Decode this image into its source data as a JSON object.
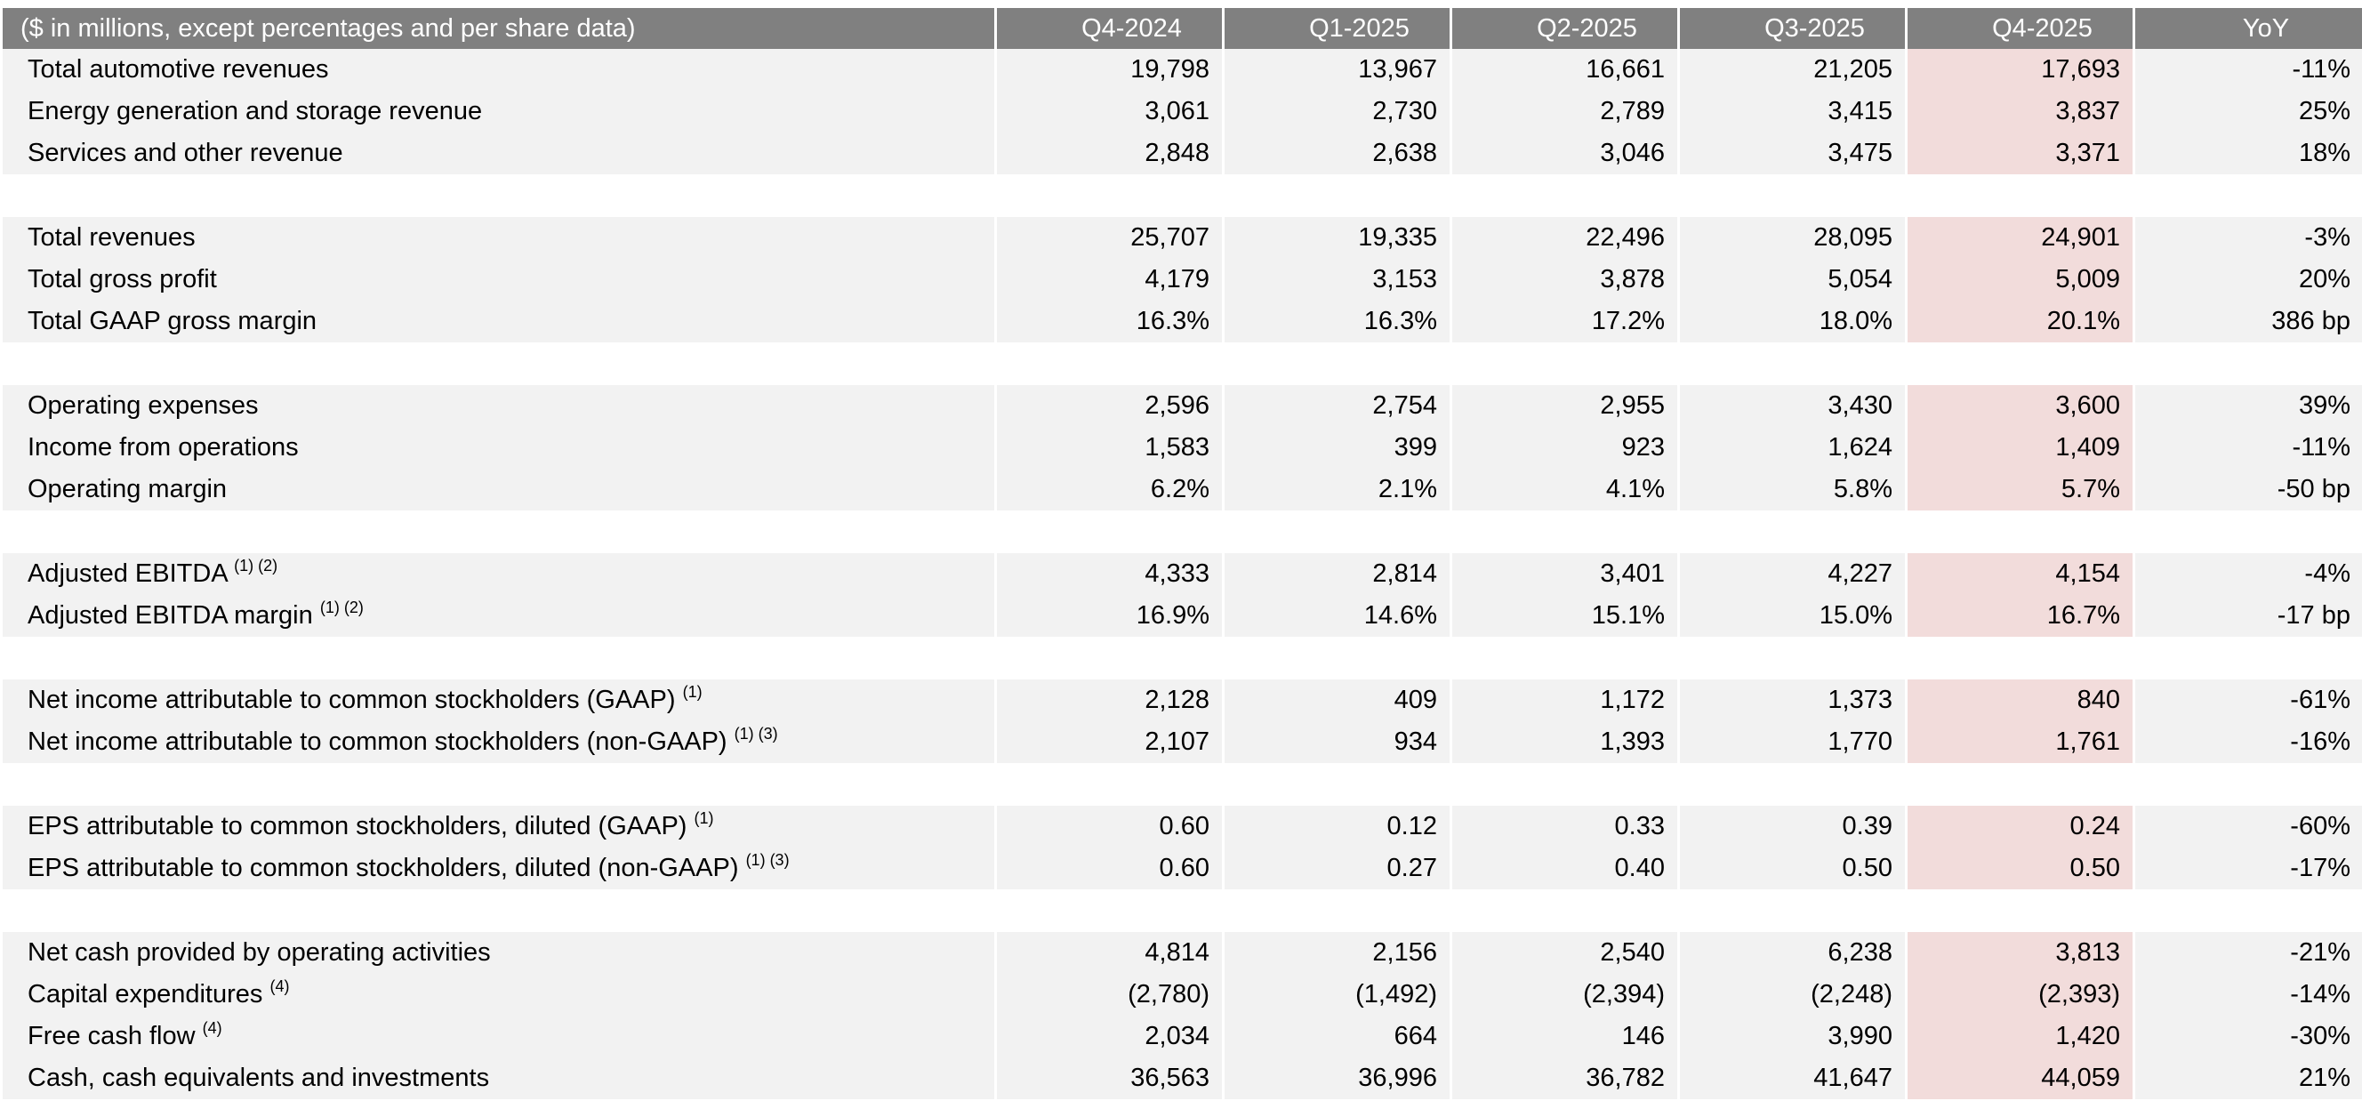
{
  "table": {
    "header": {
      "label": "($ in millions, except percentages and per share data)",
      "periods": [
        "Q4-2024",
        "Q1-2025",
        "Q2-2025",
        "Q3-2025",
        "Q4-2025"
      ],
      "yoy": "YoY"
    },
    "groups": [
      {
        "rows": [
          {
            "label": "Total automotive revenues",
            "note": "",
            "values": [
              "19,798",
              "13,967",
              "16,661",
              "21,205",
              "17,693"
            ],
            "yoy": "-11%"
          },
          {
            "label": "Energy generation and storage revenue",
            "note": "",
            "values": [
              "3,061",
              "2,730",
              "2,789",
              "3,415",
              "3,837"
            ],
            "yoy": "25%"
          },
          {
            "label": "Services and other revenue",
            "note": "",
            "values": [
              "2,848",
              "2,638",
              "3,046",
              "3,475",
              "3,371"
            ],
            "yoy": "18%"
          }
        ]
      },
      {
        "rows": [
          {
            "label": "Total revenues",
            "note": "",
            "values": [
              "25,707",
              "19,335",
              "22,496",
              "28,095",
              "24,901"
            ],
            "yoy": "-3%"
          },
          {
            "label": "Total gross profit",
            "note": "",
            "values": [
              "4,179",
              "3,153",
              "3,878",
              "5,054",
              "5,009"
            ],
            "yoy": "20%"
          },
          {
            "label": "Total GAAP gross margin",
            "note": "",
            "values": [
              "16.3%",
              "16.3%",
              "17.2%",
              "18.0%",
              "20.1%"
            ],
            "yoy": "386 bp"
          }
        ]
      },
      {
        "rows": [
          {
            "label": "Operating expenses",
            "note": "",
            "values": [
              "2,596",
              "2,754",
              "2,955",
              "3,430",
              "3,600"
            ],
            "yoy": "39%"
          },
          {
            "label": "Income from operations",
            "note": "",
            "values": [
              "1,583",
              "399",
              "923",
              "1,624",
              "1,409"
            ],
            "yoy": "-11%"
          },
          {
            "label": "Operating margin",
            "note": "",
            "values": [
              "6.2%",
              "2.1%",
              "4.1%",
              "5.8%",
              "5.7%"
            ],
            "yoy": "-50 bp"
          }
        ]
      },
      {
        "rows": [
          {
            "label": "Adjusted EBITDA",
            "note": "(1) (2)",
            "values": [
              "4,333",
              "2,814",
              "3,401",
              "4,227",
              "4,154"
            ],
            "yoy": "-4%"
          },
          {
            "label": "Adjusted EBITDA margin",
            "note": "(1) (2)",
            "values": [
              "16.9%",
              "14.6%",
              "15.1%",
              "15.0%",
              "16.7%"
            ],
            "yoy": "-17 bp"
          }
        ]
      },
      {
        "rows": [
          {
            "label": "Net income attributable to common stockholders (GAAP)",
            "note": "(1)",
            "values": [
              "2,128",
              "409",
              "1,172",
              "1,373",
              "840"
            ],
            "yoy": "-61%"
          },
          {
            "label": "Net income attributable to common stockholders (non-GAAP)",
            "note": "(1) (3)",
            "values": [
              "2,107",
              "934",
              "1,393",
              "1,770",
              "1,761"
            ],
            "yoy": "-16%"
          }
        ]
      },
      {
        "rows": [
          {
            "label": "EPS attributable to common stockholders, diluted (GAAP)",
            "note": "(1)",
            "values": [
              "0.60",
              "0.12",
              "0.33",
              "0.39",
              "0.24"
            ],
            "yoy": "-60%"
          },
          {
            "label": "EPS attributable to common stockholders, diluted (non-GAAP)",
            "note": "(1) (3)",
            "values": [
              "0.60",
              "0.27",
              "0.40",
              "0.50",
              "0.50"
            ],
            "yoy": "-17%"
          }
        ]
      },
      {
        "rows": [
          {
            "label": "Net cash provided by operating activities",
            "note": "",
            "values": [
              "4,814",
              "2,156",
              "2,540",
              "6,238",
              "3,813"
            ],
            "yoy": "-21%"
          },
          {
            "label": "Capital expenditures",
            "note": "(4)",
            "values": [
              "(2,780)",
              "(1,492)",
              "(2,394)",
              "(2,248)",
              "(2,393)"
            ],
            "yoy": "-14%"
          },
          {
            "label": "Free cash flow",
            "note": "(4)",
            "values": [
              "2,034",
              "664",
              "146",
              "3,990",
              "1,420"
            ],
            "yoy": "-30%"
          },
          {
            "label": "Cash, cash equivalents and investments",
            "note": "",
            "values": [
              "36,563",
              "36,996",
              "36,782",
              "41,647",
              "44,059"
            ],
            "yoy": "21%"
          }
        ]
      }
    ],
    "colors": {
      "header_bg": "#808080",
      "row_bg": "#f2f2f2",
      "highlight_bg": "#f2dcdb"
    }
  }
}
